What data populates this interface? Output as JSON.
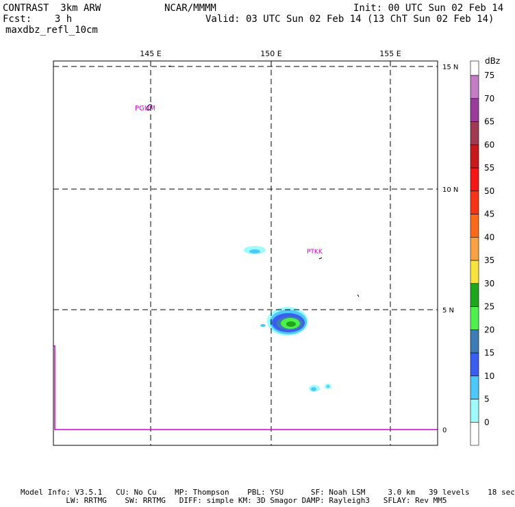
{
  "header": {
    "model": "CONTRAST  3km ARW",
    "fcst": "Fcst:    3 h",
    "field": "maxdbz_refl_10cm",
    "org": "NCAR/MMMM",
    "init": "Init: 00 UTC Sun 02 Feb 14",
    "valid": "Valid: 03 UTC Sun 02 Feb 14 (13 ChT Sun 02 Feb 14)"
  },
  "map": {
    "lon_labels": [
      "145 E",
      "150 E",
      "155 E"
    ],
    "lat_labels": [
      "15 N",
      "10 N",
      "5 N",
      "0"
    ],
    "stations": [
      "PGUM",
      "PTKK"
    ],
    "gridline_style": "dashed"
  },
  "legend": {
    "unit": "dBz",
    "levels": [
      "0",
      "5",
      "10",
      "15",
      "20",
      "25",
      "30",
      "35",
      "40",
      "45",
      "50",
      "55",
      "60",
      "65",
      "70",
      "75"
    ],
    "colors": [
      "#ffffff",
      "#9ffafa",
      "#4ec8f8",
      "#3a5ef0",
      "#3d7cb4",
      "#4ef04c",
      "#1fa61e",
      "#f8e23e",
      "#f8a246",
      "#fa6a1a",
      "#f83418",
      "#f51616",
      "#c81a1a",
      "#a03a52",
      "#9a3c9c",
      "#c47cc4"
    ]
  },
  "footer": {
    "line1": "Model Info: V3.5.1   CU: No Cu    MP: Thompson    PBL: YSU      SF: Noah LSM     3.0 km   39 levels    18 sec",
    "line2": "          LW: RRTMG    SW: RRTMG   DIFF: simple KM: 3D Smagor DAMP: Rayleigh3   SFLAY: Rev MM5"
  },
  "colors": {
    "station": "#d000d0",
    "boundary": "#d000d0"
  }
}
